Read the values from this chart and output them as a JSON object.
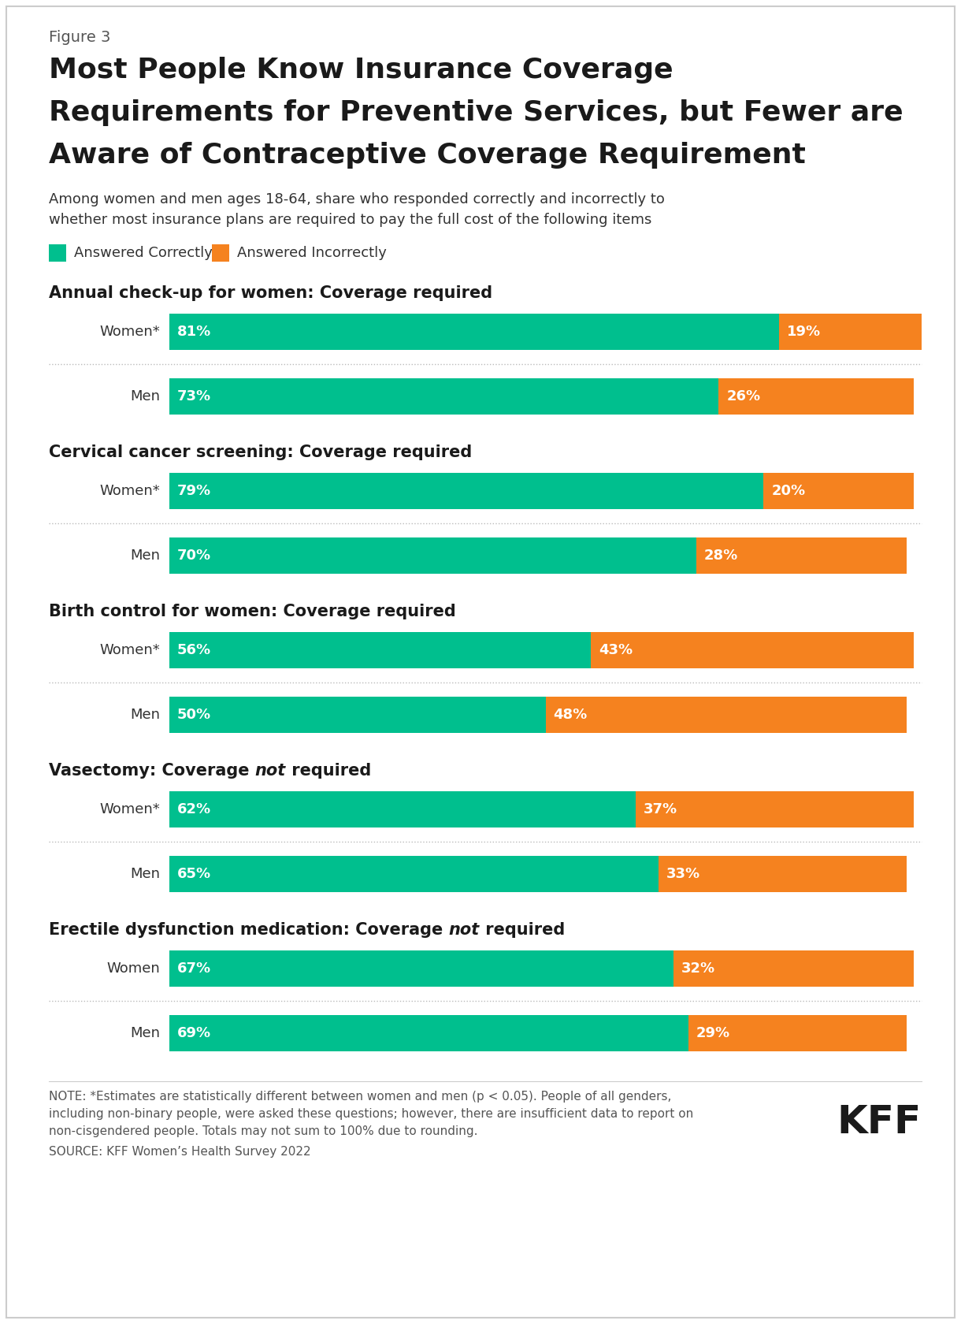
{
  "figure_label": "Figure 3",
  "title_line1": "Most People Know Insurance Coverage",
  "title_line2": "Requirements for Preventive Services, but Fewer are",
  "title_line3": "Aware of Contraceptive Coverage Requirement",
  "subtitle_line1": "Among women and men ages 18-64, share who responded correctly and incorrectly to",
  "subtitle_line2": "whether most insurance plans are required to pay the full cost of the following items",
  "legend_correct": "Answered Correctly",
  "legend_incorrect": "Answered Incorrectly",
  "color_correct": "#00BF8E",
  "color_incorrect": "#F5821F",
  "background_color": "#FFFFFF",
  "text_dark": "#1a1a1a",
  "text_gray": "#555555",
  "sections": [
    {
      "title_parts": [
        {
          "text": "Annual check-up for women: Coverage required",
          "italic": false
        }
      ],
      "rows": [
        {
          "label": "Women*",
          "correct": 81,
          "incorrect": 19
        },
        {
          "label": "Men",
          "correct": 73,
          "incorrect": 26
        }
      ]
    },
    {
      "title_parts": [
        {
          "text": "Cervical cancer screening: Coverage required",
          "italic": false
        }
      ],
      "rows": [
        {
          "label": "Women*",
          "correct": 79,
          "incorrect": 20
        },
        {
          "label": "Men",
          "correct": 70,
          "incorrect": 28
        }
      ]
    },
    {
      "title_parts": [
        {
          "text": "Birth control for women: Coverage required",
          "italic": false
        }
      ],
      "rows": [
        {
          "label": "Women*",
          "correct": 56,
          "incorrect": 43
        },
        {
          "label": "Men",
          "correct": 50,
          "incorrect": 48
        }
      ]
    },
    {
      "title_parts": [
        {
          "text": "Vasectomy: Coverage ",
          "italic": false
        },
        {
          "text": "not",
          "italic": true
        },
        {
          "text": " required",
          "italic": false
        }
      ],
      "rows": [
        {
          "label": "Women*",
          "correct": 62,
          "incorrect": 37
        },
        {
          "label": "Men",
          "correct": 65,
          "incorrect": 33
        }
      ]
    },
    {
      "title_parts": [
        {
          "text": "Erectile dysfunction medication: Coverage ",
          "italic": false
        },
        {
          "text": "not",
          "italic": true
        },
        {
          "text": " required",
          "italic": false
        }
      ],
      "rows": [
        {
          "label": "Women",
          "correct": 67,
          "incorrect": 32
        },
        {
          "label": "Men",
          "correct": 69,
          "incorrect": 29
        }
      ]
    }
  ],
  "note_line1": "NOTE: *Estimates are statistically different between women and men (p < 0.05). People of all genders,",
  "note_line2": "including non-binary people, were asked these questions; however, there are insufficient data to report on",
  "note_line3": "non-cisgendered people. Totals may not sum to 100% due to rounding.",
  "source": "SOURCE: KFF Women’s Health Survey 2022"
}
